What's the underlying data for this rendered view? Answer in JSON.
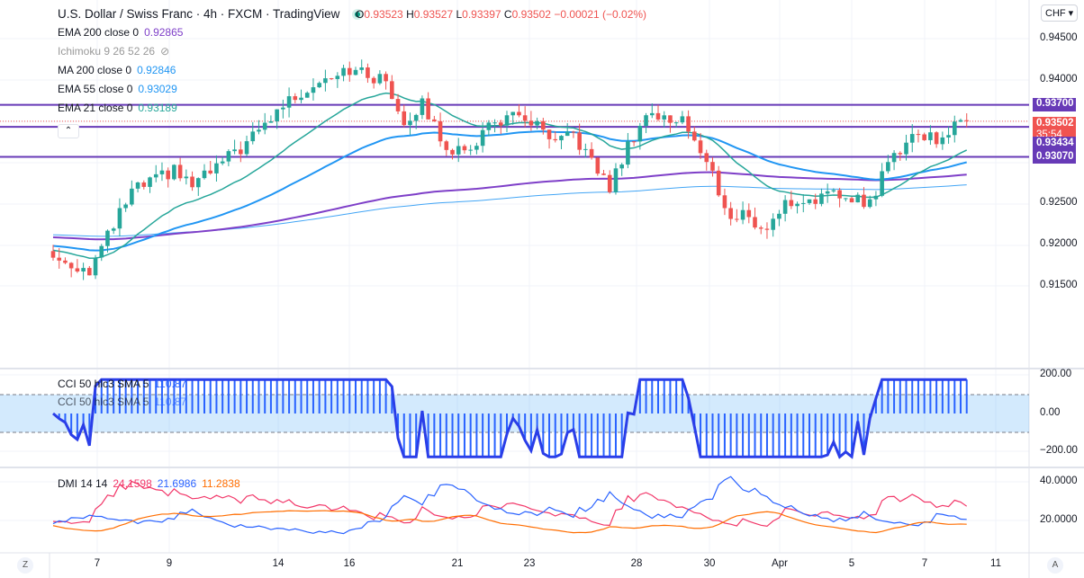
{
  "header": {
    "title": "U.S. Dollar / Swiss Franc · 4h · FXCM · TradingView",
    "o_label": "O",
    "o": "0.93523",
    "h_label": "H",
    "h": "0.93527",
    "l_label": "L",
    "l": "0.93397",
    "c_label": "C",
    "c": "0.93502",
    "change": "−0.00021 (−0.02%)"
  },
  "indicators": [
    {
      "label": "EMA 200 close 0",
      "value": "0.92865",
      "color": "#7e3fc8"
    },
    {
      "label": "Ichimoku 9 26 52 26",
      "value": "",
      "color": "#aaa"
    },
    {
      "label": "MA 200 close 0",
      "value": "0.92846",
      "color": "#2196f3"
    },
    {
      "label": "EMA 55 close 0",
      "value": "0.93029",
      "color": "#2196f3"
    },
    {
      "label": "EMA 21 close 0",
      "value": "0.93189",
      "color": "#26a69a"
    }
  ],
  "cci": {
    "label": "CCI 50 hlc3 SMA 5",
    "value": "110.87"
  },
  "dmi": {
    "label": "DMI 14 14",
    "plus": "24.1598",
    "minus": "21.6986",
    "adx": "11.2838"
  },
  "currency": "CHF",
  "price_axis": [
    "0.94500",
    "0.94000",
    "0.92500",
    "0.92000",
    "0.91500"
  ],
  "cci_axis": [
    "200.00",
    "0.00",
    "−200.00"
  ],
  "dmi_axis": [
    "40.0000",
    "20.0000"
  ],
  "tags": {
    "l1": "0.93700",
    "last": "0.93502",
    "countdown": "35:54",
    "l2": "0.93434",
    "l3": "0.93070"
  },
  "dates": [
    "7",
    "9",
    "14",
    "16",
    "21",
    "23",
    "28",
    "30",
    "Apr",
    "5",
    "7",
    "11"
  ],
  "footer": {
    "z": "Z",
    "a": "A"
  },
  "chart_data": {
    "type": "candlestick",
    "symbol": "USDCHF 4h",
    "horizontal_lines": [
      0.937,
      0.93434,
      0.9307
    ],
    "close_waypoints": [
      [
        0,
        0.9185
      ],
      [
        6,
        0.917
      ],
      [
        9,
        0.921
      ],
      [
        13,
        0.9265
      ],
      [
        20,
        0.929
      ],
      [
        23,
        0.9272
      ],
      [
        28,
        0.93
      ],
      [
        33,
        0.933
      ],
      [
        38,
        0.937
      ],
      [
        44,
        0.94
      ],
      [
        48,
        0.9415
      ],
      [
        55,
        0.9398
      ],
      [
        58,
        0.935
      ],
      [
        61,
        0.937
      ],
      [
        65,
        0.932
      ],
      [
        68,
        0.931
      ],
      [
        72,
        0.9345
      ],
      [
        75,
        0.9355
      ],
      [
        79,
        0.935
      ],
      [
        83,
        0.932
      ],
      [
        86,
        0.9335
      ],
      [
        89,
        0.93
      ],
      [
        92,
        0.927
      ],
      [
        95,
        0.932
      ],
      [
        98,
        0.936
      ],
      [
        102,
        0.935
      ],
      [
        104,
        0.9358
      ],
      [
        106,
        0.9325
      ],
      [
        109,
        0.9285
      ],
      [
        112,
        0.923
      ],
      [
        115,
        0.924
      ],
      [
        117,
        0.9215
      ],
      [
        121,
        0.925
      ],
      [
        126,
        0.9258
      ],
      [
        132,
        0.926
      ],
      [
        135,
        0.925
      ],
      [
        138,
        0.93
      ],
      [
        142,
        0.9335
      ],
      [
        146,
        0.933
      ],
      [
        149,
        0.9342
      ],
      [
        151,
        0.935
      ]
    ],
    "ylim": [
      0.9135,
      0.949
    ]
  }
}
